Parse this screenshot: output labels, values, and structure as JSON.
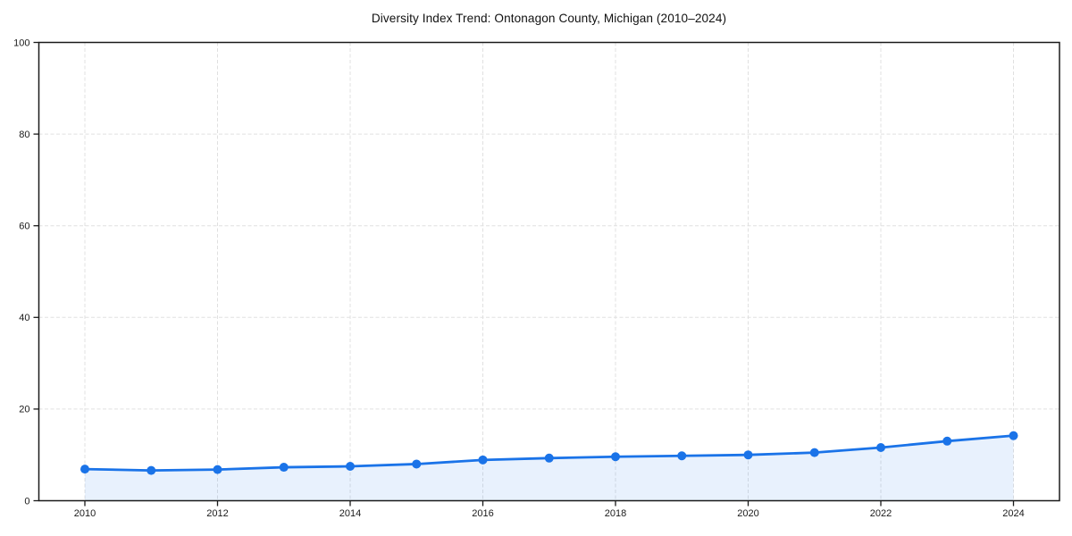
{
  "page": {
    "background": "#ffffff"
  },
  "chart_data": {
    "type": "line",
    "title": "Diversity Index Trend: Ontonagon County, Michigan (2010–2024)",
    "x": [
      2010,
      2011,
      2012,
      2013,
      2014,
      2015,
      2016,
      2017,
      2018,
      2019,
      2020,
      2021,
      2022,
      2023,
      2024
    ],
    "series": [
      {
        "name": "Diversity Index",
        "values": [
          6.9,
          6.6,
          6.8,
          7.3,
          7.5,
          8.0,
          8.9,
          9.3,
          9.6,
          9.8,
          10.0,
          10.5,
          11.6,
          13.0,
          14.2
        ]
      }
    ],
    "xlabel": "",
    "ylabel": "",
    "ylim": [
      0,
      100
    ],
    "yticks": [
      0,
      20,
      40,
      60,
      80,
      100
    ],
    "xticks": [
      2010,
      2012,
      2014,
      2016,
      2018,
      2020,
      2022,
      2024
    ],
    "grid": true,
    "grid_style": "dashed",
    "area_fill": true,
    "markers": true,
    "legend_position": "none",
    "colors": {
      "line": "#1a73e8",
      "marker": "#1a73e8",
      "area": "#1a73e8",
      "area_opacity": 0.1,
      "grid": "#e0e0e0",
      "axis": "#1a1a1a",
      "tick_label": "#1a1a1a",
      "title": "#111111",
      "background": "#ffffff"
    }
  }
}
